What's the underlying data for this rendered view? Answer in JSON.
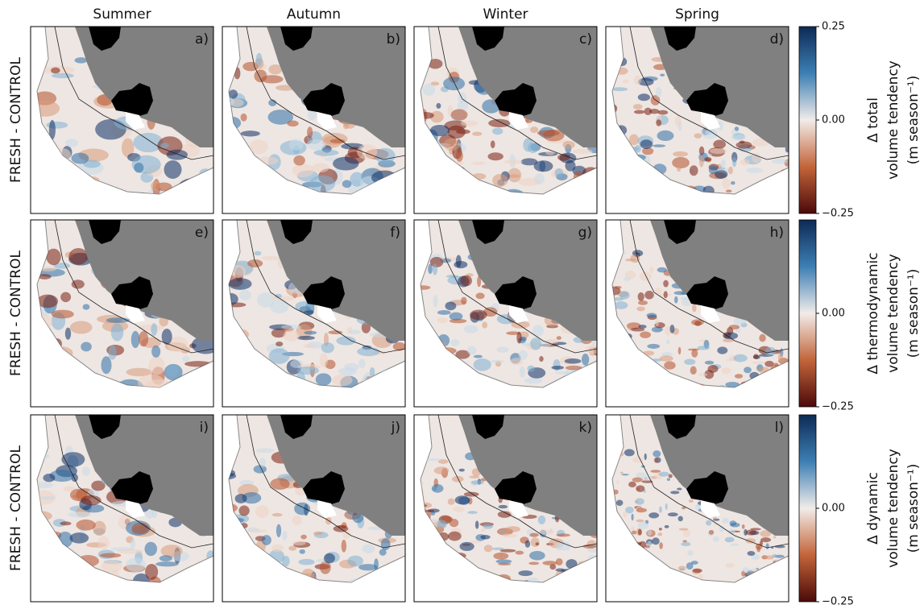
{
  "columns": [
    "Summer",
    "Autumn",
    "Winter",
    "Spring"
  ],
  "rows": [
    {
      "label": "FRESH - CONTROL",
      "panels": [
        "a)",
        "b)",
        "c)",
        "d)"
      ],
      "colorbar": {
        "label": [
          "Δ total",
          "volume tendency",
          "(m season⁻¹)"
        ],
        "lim": [
          -0.25,
          0.25
        ],
        "ticks": [
          0.25,
          {
            "value": 0,
            "label": "0.00"
          },
          {
            "value": -0.25,
            "label": "−0.25"
          }
        ]
      }
    },
    {
      "label": "FRESH - CONTROL",
      "panels": [
        "e)",
        "f)",
        "g)",
        "h)"
      ],
      "colorbar": {
        "label": [
          "Δ thermodynamic",
          "volume tendency",
          "(m season⁻¹)"
        ],
        "lim": [
          -0.25,
          0.25
        ],
        "ticks": [
          {
            "value": 0,
            "label": "0.00"
          },
          {
            "value": -0.25,
            "label": "−0.25"
          }
        ]
      }
    },
    {
      "label": "FRESH - CONTROL",
      "panels": [
        "i)",
        "j)",
        "k)",
        "l)"
      ],
      "colorbar": {
        "label": [
          "Δ dynamic",
          "volume tendency",
          "(m season⁻¹)"
        ],
        "lim": [
          -0.25,
          0.25
        ],
        "ticks": [
          {
            "value": 0,
            "label": "0.00"
          },
          {
            "value": -0.25,
            "label": "−0.25"
          }
        ]
      }
    }
  ]
}
